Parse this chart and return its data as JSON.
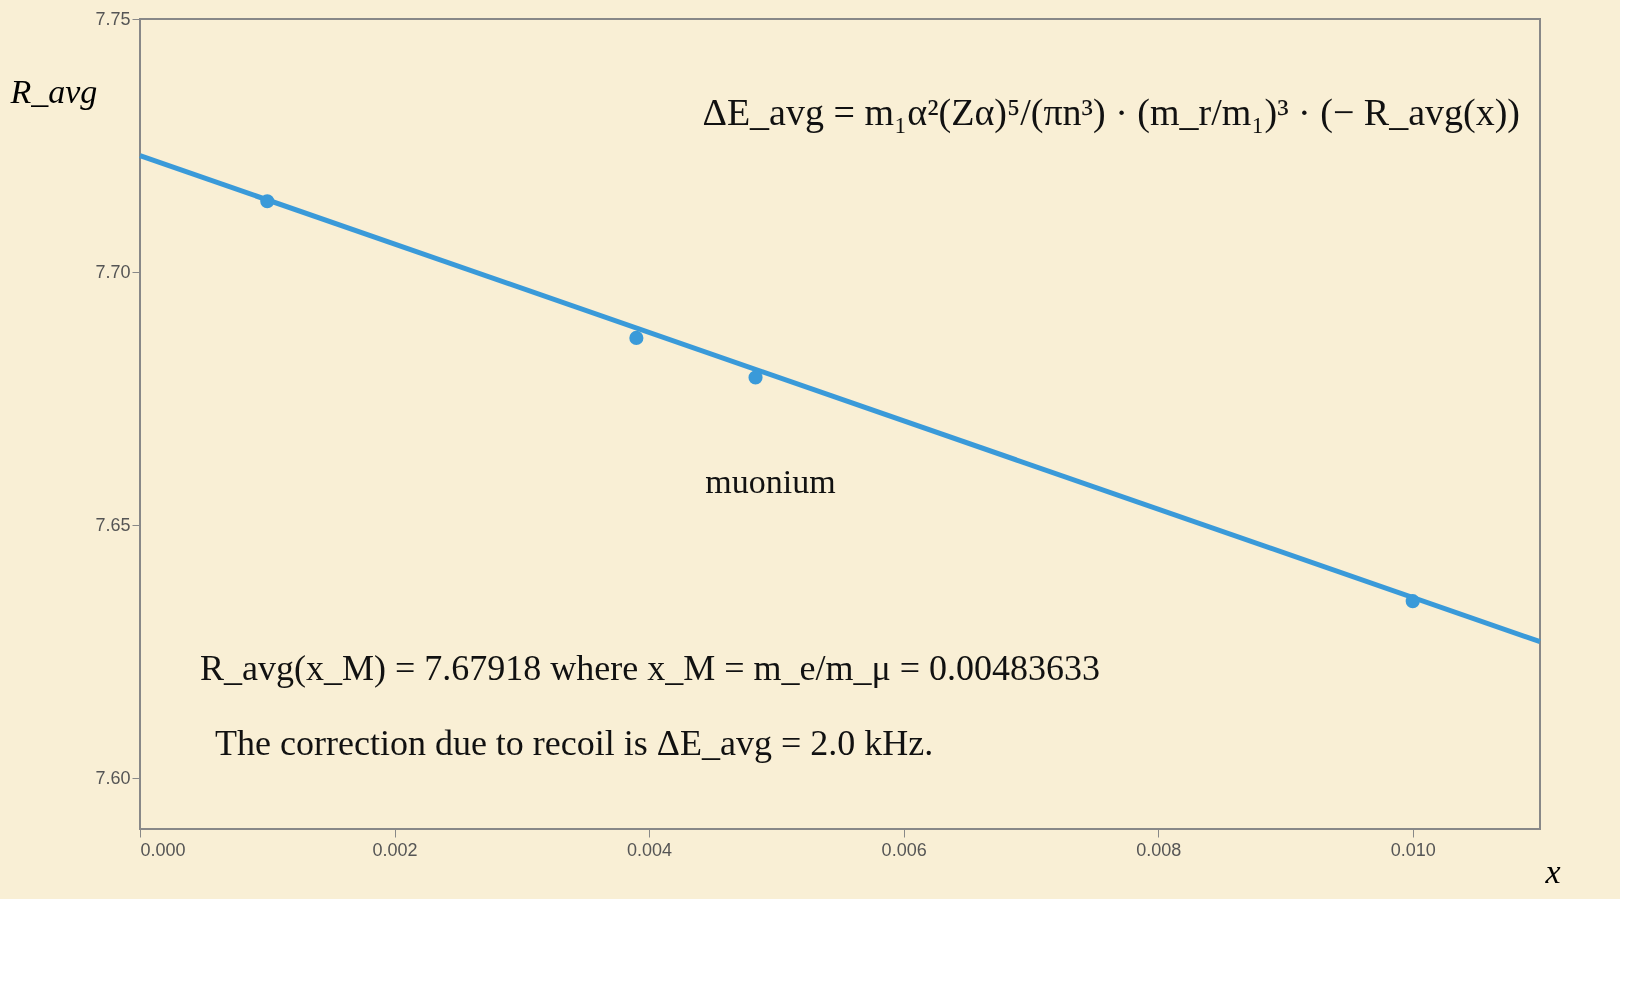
{
  "chart_data": {
    "type": "line",
    "xlabel": "x",
    "ylabel": "R_avg",
    "xlim": [
      0.0,
      0.011
    ],
    "ylim": [
      7.59,
      7.75
    ],
    "xticks": [
      {
        "value": 0.0,
        "label": "0.000"
      },
      {
        "value": 0.002,
        "label": "0.002"
      },
      {
        "value": 0.004,
        "label": "0.004"
      },
      {
        "value": 0.006,
        "label": "0.006"
      },
      {
        "value": 0.008,
        "label": "0.008"
      },
      {
        "value": 0.01,
        "label": "0.010"
      }
    ],
    "yticks": [
      {
        "value": 7.6,
        "label": "7.60"
      },
      {
        "value": 7.65,
        "label": "7.65"
      },
      {
        "value": 7.7,
        "label": "7.70"
      },
      {
        "value": 7.75,
        "label": "7.75"
      }
    ],
    "grid": false,
    "series": [
      {
        "type": "line",
        "color": "#3a9ad9",
        "x": [
          0.0,
          0.011
        ],
        "values": [
          7.723,
          7.627
        ],
        "marker": "none"
      },
      {
        "type": "scatter",
        "color": "#3a9ad9",
        "x": [
          0.001,
          0.0039,
          0.00483633,
          0.01
        ],
        "values": [
          7.714,
          7.687,
          7.67918,
          7.635
        ],
        "marker": "circle"
      }
    ],
    "annotations": [
      "ΔE_avg = m₁α²(Zα)⁵/(πn³) · (m_r/m₁)³ · (− R_avg(x))",
      {
        "text": "muonium",
        "x": 0.00483633,
        "y": 7.67918
      },
      "R_avg(x_M) = 7.67918 where x_M = m_e/m_μ = 0.00483633",
      "The correction due to recoil is ΔE_avg = 2.0 kHz."
    ]
  }
}
